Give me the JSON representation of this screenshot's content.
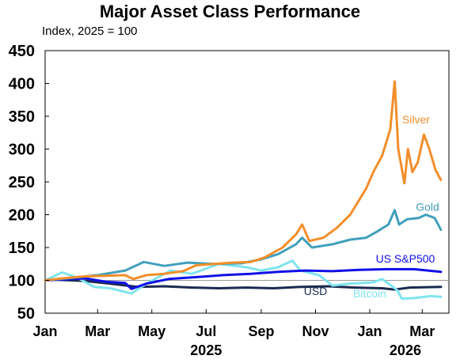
{
  "chart_data": {
    "type": "line",
    "title": "Major Asset Class Performance",
    "subtitle": "Index, 2025 = 100",
    "ylim": [
      50,
      450
    ],
    "yticks": [
      50,
      100,
      150,
      200,
      250,
      300,
      350,
      400,
      450
    ],
    "xlim": [
      "2025-01-01",
      "2026-03-31"
    ],
    "xticks": [
      {
        "date": "2025-01-01",
        "label": "Jan"
      },
      {
        "date": "2025-03-01",
        "label": "Mar"
      },
      {
        "date": "2025-05-01",
        "label": "May"
      },
      {
        "date": "2025-07-01",
        "label": "Jul"
      },
      {
        "date": "2025-09-01",
        "label": "Sep"
      },
      {
        "date": "2025-11-01",
        "label": "Nov"
      },
      {
        "date": "2026-01-01",
        "label": "Jan"
      },
      {
        "date": "2026-03-01",
        "label": "Mar"
      }
    ],
    "year_labels": [
      {
        "date": "2025-07-01",
        "label": "2025"
      },
      {
        "date": "2026-02-10",
        "label": "2026"
      }
    ],
    "reference_line": 100,
    "grid": false,
    "legend": "none",
    "series": [
      {
        "name": "Silver",
        "color": "#f28e2b",
        "label_pos": {
          "date": "2026-02-22",
          "value": 345
        },
        "points": [
          [
            "2025-01-01",
            100
          ],
          [
            "2025-01-20",
            103
          ],
          [
            "2025-02-15",
            106
          ],
          [
            "2025-03-10",
            107
          ],
          [
            "2025-04-01",
            108
          ],
          [
            "2025-04-10",
            102
          ],
          [
            "2025-04-25",
            108
          ],
          [
            "2025-05-15",
            110
          ],
          [
            "2025-06-05",
            114
          ],
          [
            "2025-06-20",
            123
          ],
          [
            "2025-07-10",
            125
          ],
          [
            "2025-07-30",
            127
          ],
          [
            "2025-08-20",
            128
          ],
          [
            "2025-09-05",
            135
          ],
          [
            "2025-09-25",
            150
          ],
          [
            "2025-10-10",
            170
          ],
          [
            "2025-10-17",
            185
          ],
          [
            "2025-10-25",
            160
          ],
          [
            "2025-11-10",
            165
          ],
          [
            "2025-11-25",
            180
          ],
          [
            "2025-12-10",
            200
          ],
          [
            "2025-12-28",
            240
          ],
          [
            "2026-01-05",
            265
          ],
          [
            "2026-01-15",
            290
          ],
          [
            "2026-01-24",
            330
          ],
          [
            "2026-01-29",
            403
          ],
          [
            "2026-02-02",
            300
          ],
          [
            "2026-02-06",
            270
          ],
          [
            "2026-02-09",
            248
          ],
          [
            "2026-02-13",
            300
          ],
          [
            "2026-02-18",
            265
          ],
          [
            "2026-02-24",
            280
          ],
          [
            "2026-03-03",
            322
          ],
          [
            "2026-03-09",
            300
          ],
          [
            "2026-03-16",
            268
          ],
          [
            "2026-03-22",
            253
          ]
        ]
      },
      {
        "name": "Gold",
        "color": "#41a0bc",
        "label_pos": {
          "date": "2026-03-07",
          "value": 212
        },
        "points": [
          [
            "2025-01-01",
            100
          ],
          [
            "2025-02-01",
            104
          ],
          [
            "2025-03-01",
            108
          ],
          [
            "2025-04-01",
            115
          ],
          [
            "2025-04-22",
            128
          ],
          [
            "2025-05-15",
            122
          ],
          [
            "2025-06-10",
            127
          ],
          [
            "2025-07-10",
            125
          ],
          [
            "2025-08-10",
            126
          ],
          [
            "2025-09-01",
            132
          ],
          [
            "2025-09-20",
            140
          ],
          [
            "2025-10-10",
            155
          ],
          [
            "2025-10-17",
            165
          ],
          [
            "2025-10-28",
            150
          ],
          [
            "2025-11-20",
            155
          ],
          [
            "2025-12-10",
            162
          ],
          [
            "2025-12-28",
            165
          ],
          [
            "2026-01-10",
            175
          ],
          [
            "2026-01-22",
            185
          ],
          [
            "2026-01-29",
            207
          ],
          [
            "2026-02-03",
            185
          ],
          [
            "2026-02-12",
            193
          ],
          [
            "2026-02-25",
            195
          ],
          [
            "2026-03-05",
            200
          ],
          [
            "2026-03-15",
            195
          ],
          [
            "2026-03-22",
            177
          ]
        ]
      },
      {
        "name": "US S&P500",
        "color": "#1010e6",
        "label_pos": {
          "date": "2026-02-10",
          "value": 133
        },
        "points": [
          [
            "2025-01-01",
            100
          ],
          [
            "2025-02-15",
            103
          ],
          [
            "2025-03-10",
            98
          ],
          [
            "2025-04-01",
            96
          ],
          [
            "2025-04-08",
            87
          ],
          [
            "2025-04-25",
            95
          ],
          [
            "2025-05-20",
            102
          ],
          [
            "2025-06-20",
            105
          ],
          [
            "2025-07-20",
            108
          ],
          [
            "2025-08-20",
            110
          ],
          [
            "2025-09-20",
            113
          ],
          [
            "2025-10-20",
            115
          ],
          [
            "2025-11-20",
            114
          ],
          [
            "2025-12-20",
            116
          ],
          [
            "2026-01-20",
            117
          ],
          [
            "2026-02-20",
            117
          ],
          [
            "2026-03-22",
            113
          ]
        ]
      },
      {
        "name": "USD",
        "color": "#1b2a4e",
        "label_pos": {
          "date": "2025-11-01",
          "value": 84
        },
        "points": [
          [
            "2025-01-01",
            100
          ],
          [
            "2025-01-15",
            101
          ],
          [
            "2025-02-15",
            99
          ],
          [
            "2025-03-15",
            95
          ],
          [
            "2025-04-15",
            90
          ],
          [
            "2025-05-15",
            91
          ],
          [
            "2025-06-15",
            89
          ],
          [
            "2025-07-15",
            88
          ],
          [
            "2025-08-15",
            89
          ],
          [
            "2025-09-15",
            88
          ],
          [
            "2025-10-15",
            90
          ],
          [
            "2025-11-15",
            91
          ],
          [
            "2025-12-15",
            89
          ],
          [
            "2026-01-15",
            88
          ],
          [
            "2026-01-29",
            86
          ],
          [
            "2026-02-15",
            89
          ],
          [
            "2026-03-22",
            90
          ]
        ]
      },
      {
        "name": "Bitcoin",
        "color": "#7fe4ef",
        "label_pos": {
          "date": "2026-01-01",
          "value": 80
        },
        "points": [
          [
            "2025-01-01",
            100
          ],
          [
            "2025-01-20",
            112
          ],
          [
            "2025-02-05",
            105
          ],
          [
            "2025-02-25",
            90
          ],
          [
            "2025-03-15",
            88
          ],
          [
            "2025-04-08",
            80
          ],
          [
            "2025-04-25",
            95
          ],
          [
            "2025-05-22",
            115
          ],
          [
            "2025-06-15",
            110
          ],
          [
            "2025-07-15",
            125
          ],
          [
            "2025-08-15",
            120
          ],
          [
            "2025-09-01",
            115
          ],
          [
            "2025-09-20",
            120
          ],
          [
            "2025-10-06",
            130
          ],
          [
            "2025-10-15",
            115
          ],
          [
            "2025-11-05",
            108
          ],
          [
            "2025-11-20",
            92
          ],
          [
            "2025-12-10",
            95
          ],
          [
            "2026-01-05",
            97
          ],
          [
            "2026-01-15",
            102
          ],
          [
            "2026-02-01",
            85
          ],
          [
            "2026-02-06",
            72
          ],
          [
            "2026-02-20",
            73
          ],
          [
            "2026-03-10",
            76
          ],
          [
            "2026-03-22",
            75
          ]
        ]
      }
    ]
  }
}
